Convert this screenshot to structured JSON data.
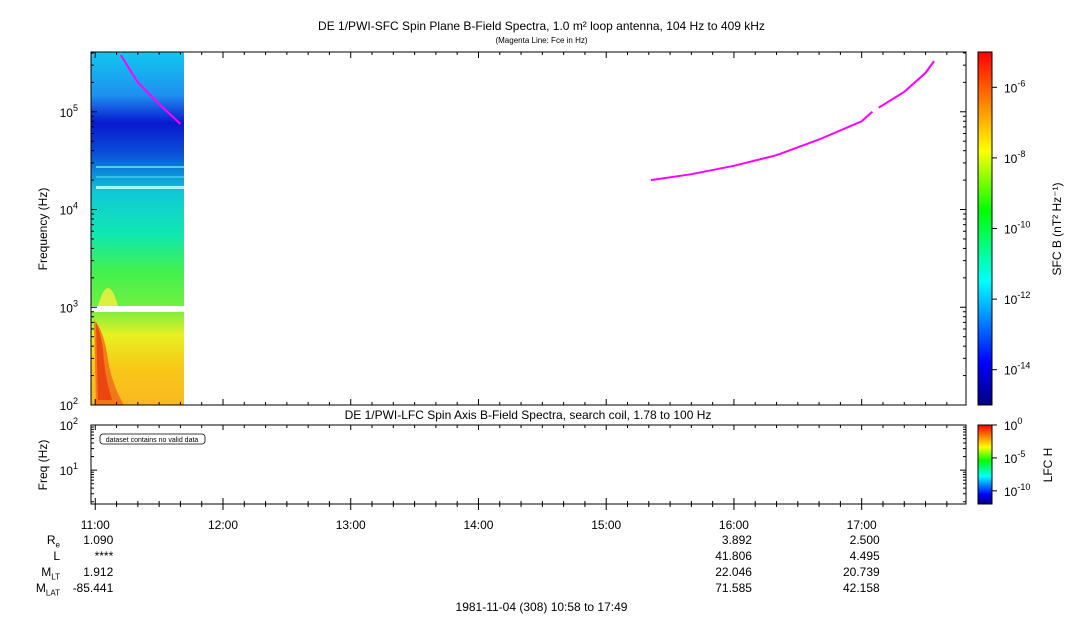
{
  "panel1": {
    "title": "DE 1/PWI-SFC  Spin Plane B-Field Spectra, 1.0 m² loop antenna, 104 Hz to 409 kHz",
    "subtitle": "(Magenta Line: Fce in Hz)",
    "ylabel": "Frequency (Hz)",
    "yticks": [
      {
        "base": "10",
        "exp": "2"
      },
      {
        "base": "10",
        "exp": "3"
      },
      {
        "base": "10",
        "exp": "4"
      },
      {
        "base": "10",
        "exp": "5"
      }
    ],
    "colorbar": {
      "label": "SFC B (nT² Hz⁻¹)",
      "ticks": [
        {
          "base": "10",
          "exp": "-14"
        },
        {
          "base": "10",
          "exp": "-12"
        },
        {
          "base": "10",
          "exp": "-10"
        },
        {
          "base": "10",
          "exp": "-8"
        },
        {
          "base": "10",
          "exp": "-6"
        }
      ]
    }
  },
  "panel2": {
    "title": "DE 1/PWI-LFC  Spin Axis B-Field Spectra, search coil, 1.78 to 100 Hz",
    "ylabel": "Freq (Hz)",
    "yticks": [
      {
        "base": "10",
        "exp": "1"
      },
      {
        "base": "10",
        "exp": "2"
      }
    ],
    "note": "dataset contains no valid data",
    "colorbar": {
      "label": "LFC H",
      "ticks": [
        {
          "base": "10",
          "exp": "-10"
        },
        {
          "base": "10",
          "exp": "-5"
        },
        {
          "base": "10",
          "exp": "0"
        }
      ]
    }
  },
  "chart_data": [
    {
      "type": "heatmap",
      "title": "DE 1/PWI-SFC  Spin Plane B-Field Spectra, 1.0 m² loop antenna, 104 Hz to 409 kHz",
      "ylabel": "Frequency (Hz)",
      "yscale": "log",
      "ylim": [
        100,
        409000
      ],
      "xlim": [
        "10:58",
        "17:49"
      ],
      "colorscale": "log",
      "clim": [
        1e-15,
        1e-05
      ],
      "data_coverage": [
        "10:58",
        "11:42"
      ],
      "fce_line": {
        "name": "Fce in Hz",
        "color": "#ff00ff",
        "segments": [
          {
            "x": [
              "11:12",
              "11:20",
              "11:30",
              "11:40"
            ],
            "y": [
              380000,
              200000,
              120000,
              75000
            ]
          },
          {
            "x": [
              "15:21",
              "15:40",
              "16:00",
              "16:20",
              "16:40",
              "17:00",
              "17:05"
            ],
            "y": [
              20000,
              23000,
              28000,
              36000,
              52000,
              80000,
              100000
            ]
          },
          {
            "x": [
              "17:08",
              "17:20",
              "17:30",
              "17:34"
            ],
            "y": [
              110000,
              160000,
              250000,
              330000
            ]
          }
        ]
      }
    },
    {
      "type": "heatmap",
      "title": "DE 1/PWI-LFC  Spin Axis B-Field Spectra, search coil, 1.78 to 100 Hz",
      "ylabel": "Freq (Hz)",
      "yscale": "log",
      "ylim": [
        1.78,
        100
      ],
      "colorscale": "log",
      "clim": [
        1e-12,
        1
      ],
      "annotations": [
        "dataset contains no valid data"
      ]
    }
  ],
  "xaxis": {
    "ticks": [
      "11:00",
      "12:00",
      "13:00",
      "14:00",
      "15:00",
      "16:00",
      "17:00"
    ]
  },
  "ephemeris": {
    "labels": [
      {
        "main": "R",
        "sub": "e"
      },
      {
        "main": "L",
        "sub": ""
      },
      {
        "main": "M",
        "sub": "LT"
      },
      {
        "main": "M",
        "sub": "LAT"
      }
    ],
    "columns": [
      {
        "time": "11:00",
        "values": [
          "1.090",
          "****",
          "1.912",
          "-85.441"
        ]
      },
      {
        "time": "16:00",
        "values": [
          "3.892",
          "41.806",
          "22.046",
          "71.585"
        ]
      },
      {
        "time": "17:00",
        "values": [
          "2.500",
          "4.495",
          "20.739",
          "42.158"
        ]
      }
    ]
  },
  "footer": "1981-11-04 (308) 10:58 to 17:49"
}
